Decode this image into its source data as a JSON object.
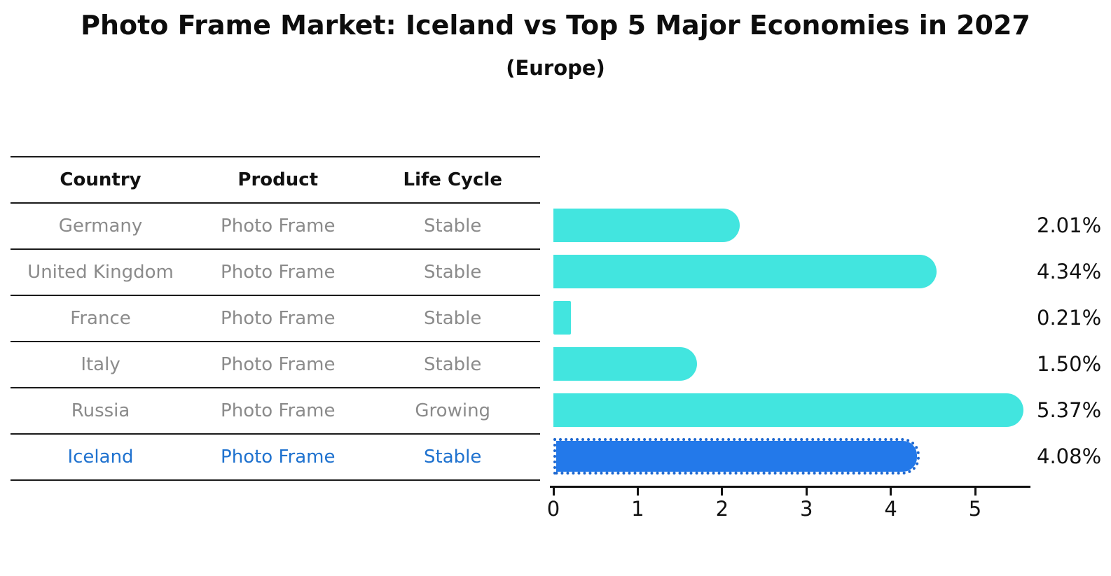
{
  "header": {
    "title": "Photo Frame Market: Iceland vs Top 5 Major Economies in 2027",
    "subtitle": "(Europe)"
  },
  "table": {
    "headers": [
      "Country",
      "Product",
      "Life Cycle"
    ],
    "rows": [
      {
        "country": "Germany",
        "product": "Photo Frame",
        "life_cycle": "Stable",
        "highlight": false
      },
      {
        "country": "United Kingdom",
        "product": "Photo Frame",
        "life_cycle": "Stable",
        "highlight": false
      },
      {
        "country": "France",
        "product": "Photo Frame",
        "life_cycle": "Stable",
        "highlight": false
      },
      {
        "country": "Italy",
        "product": "Photo Frame",
        "life_cycle": "Stable",
        "highlight": false
      },
      {
        "country": "Russia",
        "product": "Photo Frame",
        "life_cycle": "Growing",
        "highlight": false
      },
      {
        "country": "Iceland",
        "product": "Photo Frame",
        "life_cycle": "Stable",
        "highlight": true
      }
    ]
  },
  "chart_data": {
    "type": "bar",
    "orientation": "horizontal",
    "title": "Photo Frame Market: Iceland vs Top 5 Major Economies in 2027",
    "subtitle": "(Europe)",
    "categories": [
      "Germany",
      "United Kingdom",
      "France",
      "Italy",
      "Russia",
      "Iceland"
    ],
    "values": [
      2.01,
      4.34,
      0.21,
      1.5,
      5.37,
      4.08
    ],
    "value_labels": [
      "2.01%",
      "4.34%",
      "0.21%",
      "1.50%",
      "5.37%",
      "4.08%"
    ],
    "unit": "%",
    "x_ticks": [
      0,
      1,
      2,
      3,
      4,
      5
    ],
    "xlim": [
      0,
      5.65
    ],
    "grid": false,
    "legend": "none",
    "bar_color": "#42e5df",
    "highlight_color": "#2379ea",
    "highlight_index": 5,
    "xlabel": "",
    "ylabel": ""
  },
  "colors": {
    "title_text": "#0d0d0d",
    "table_line": "#1a1a1a",
    "row_text": "#8b8b8b",
    "highlight_text": "#1f72cf",
    "axis": "#111111",
    "value_label_text": "#111111"
  }
}
